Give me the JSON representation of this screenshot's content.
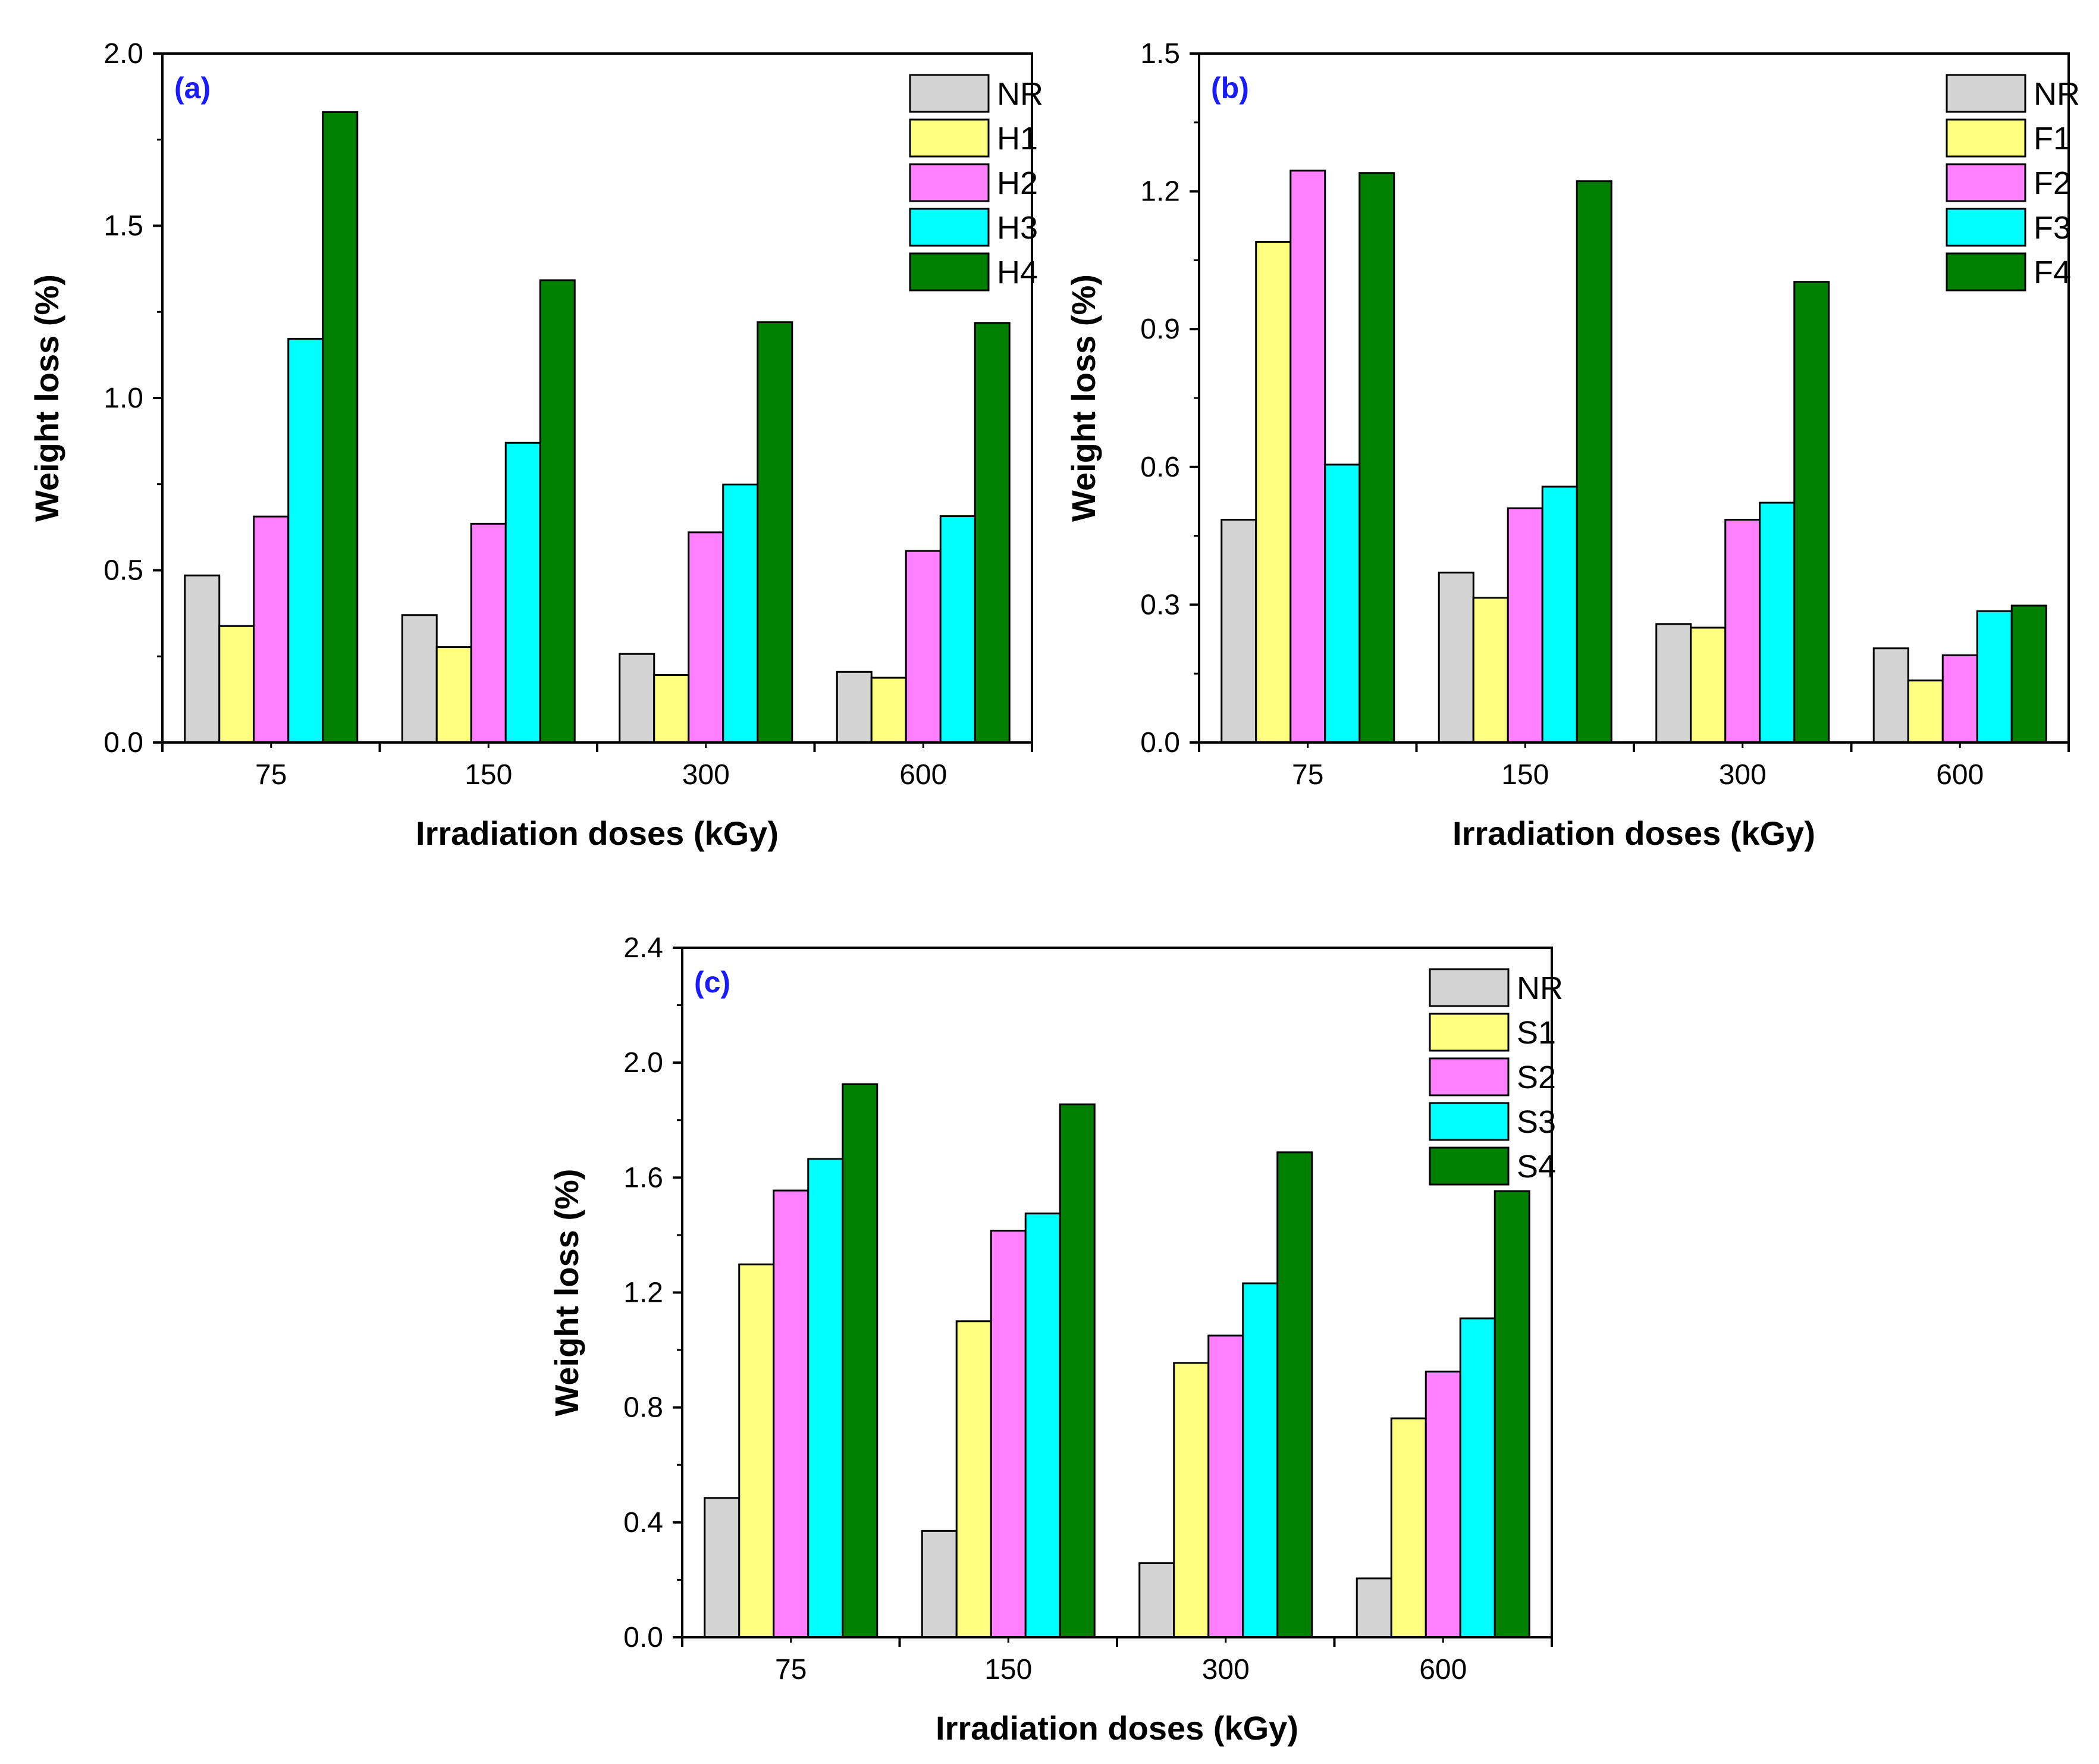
{
  "chart_data": [
    {
      "type": "bar",
      "panel_label": "(a)",
      "categories": [
        "75",
        "150",
        "300",
        "600"
      ],
      "series": [
        {
          "name": "NR",
          "values": [
            0.485,
            0.37,
            0.257,
            0.205
          ]
        },
        {
          "name": "H1",
          "values": [
            0.338,
            0.277,
            0.196,
            0.188
          ]
        },
        {
          "name": "H2",
          "values": [
            0.656,
            0.635,
            0.61,
            0.556
          ]
        },
        {
          "name": "H3",
          "values": [
            1.172,
            0.87,
            0.749,
            0.657
          ]
        },
        {
          "name": "H4",
          "values": [
            1.83,
            1.342,
            1.22,
            1.218
          ]
        }
      ],
      "xlabel": "Irradiation doses (kGy)",
      "ylabel": "Weight loss (%)",
      "ylim": [
        0,
        2.0
      ],
      "yticks": [
        "0.0",
        "0.5",
        "1.0",
        "1.5",
        "2.0"
      ],
      "legend_position": "top-right"
    },
    {
      "type": "bar",
      "panel_label": "(b)",
      "categories": [
        "75",
        "150",
        "300",
        "600"
      ],
      "series": [
        {
          "name": "NR",
          "values": [
            0.485,
            0.37,
            0.258,
            0.205
          ]
        },
        {
          "name": "F1",
          "values": [
            1.09,
            0.315,
            0.25,
            0.135
          ]
        },
        {
          "name": "F2",
          "values": [
            1.245,
            0.51,
            0.485,
            0.19
          ]
        },
        {
          "name": "F3",
          "values": [
            0.605,
            0.557,
            0.522,
            0.286
          ]
        },
        {
          "name": "F4",
          "values": [
            1.24,
            1.222,
            1.003,
            0.298
          ]
        }
      ],
      "xlabel": "Irradiation doses (kGy)",
      "ylabel": "Weight loss (%)",
      "ylim": [
        0,
        1.5
      ],
      "yticks": [
        "0.0",
        "0.3",
        "0.6",
        "0.9",
        "1.2",
        "1.5"
      ],
      "legend_position": "top-right"
    },
    {
      "type": "bar",
      "panel_label": "(c)",
      "categories": [
        "75",
        "150",
        "300",
        "600"
      ],
      "series": [
        {
          "name": "NR",
          "values": [
            0.485,
            0.37,
            0.258,
            0.205
          ]
        },
        {
          "name": "S1",
          "values": [
            1.298,
            1.1,
            0.955,
            0.762
          ]
        },
        {
          "name": "S2",
          "values": [
            1.555,
            1.415,
            1.05,
            0.925
          ]
        },
        {
          "name": "S3",
          "values": [
            1.665,
            1.475,
            1.232,
            1.11
          ]
        },
        {
          "name": "S4",
          "values": [
            1.925,
            1.855,
            1.688,
            1.553
          ]
        }
      ],
      "xlabel": "Irradiation doses (kGy)",
      "ylabel": "Weight loss (%)",
      "ylim": [
        0,
        2.4
      ],
      "yticks": [
        "0.0",
        "0.4",
        "0.8",
        "1.2",
        "1.6",
        "2.0",
        "2.4"
      ],
      "legend_position": "top-right"
    }
  ],
  "colors": {
    "series": [
      "#d3d3d3",
      "#ffff80",
      "#ff80ff",
      "#00ffff",
      "#008000"
    ],
    "panel_label": "#1a1aff",
    "axis": "#000000"
  }
}
